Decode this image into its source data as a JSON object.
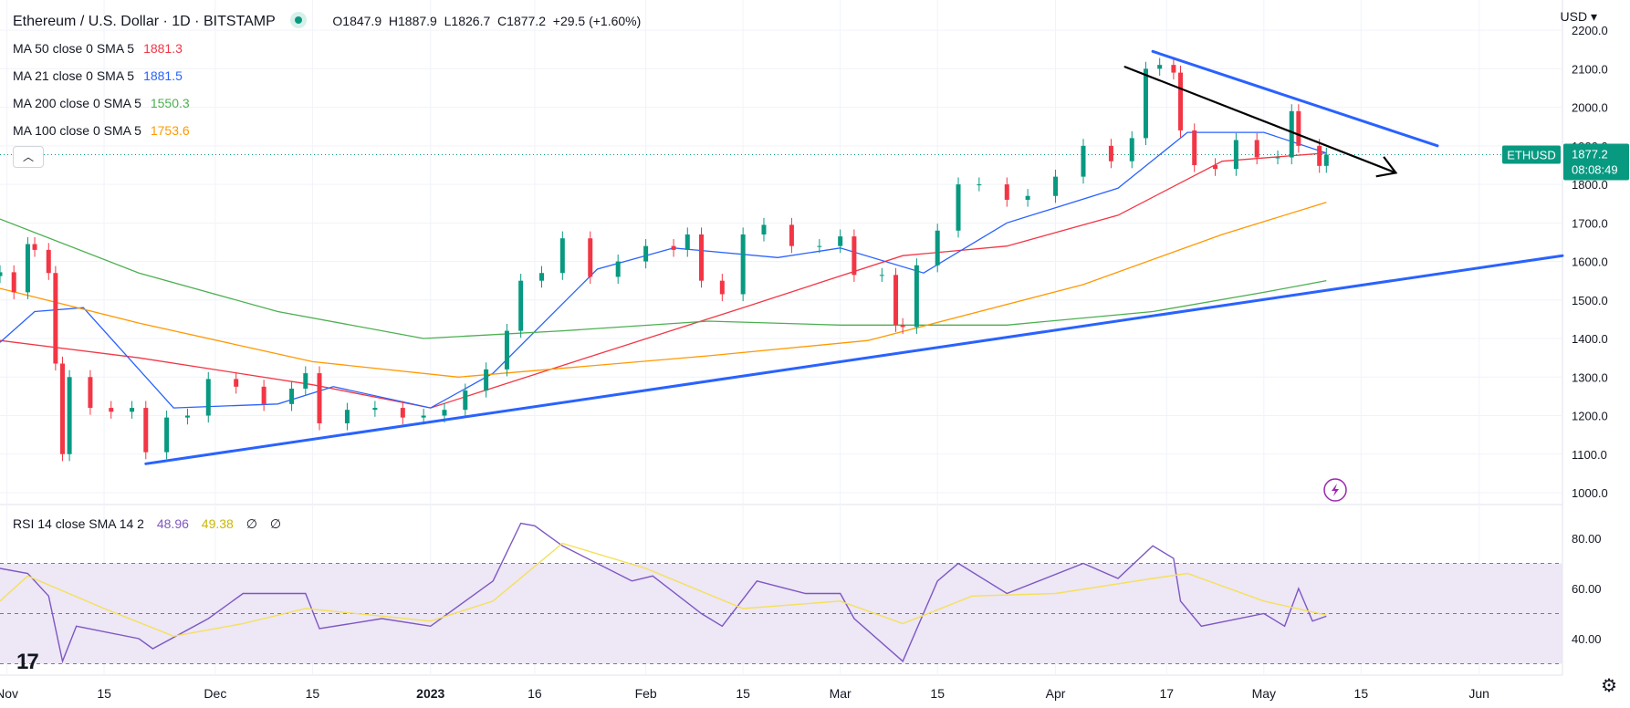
{
  "header": {
    "title": "Ethereum / U.S. Dollar · 1D · BITSTAMP",
    "ohlc": {
      "o_label": "O",
      "o": "1847.9",
      "h_label": "H",
      "h": "1887.9",
      "l_label": "L",
      "l": "1826.7",
      "c_label": "C",
      "c": "1877.2",
      "change": "+29.5 (+1.60%)"
    },
    "currency": "USD"
  },
  "indicators": [
    {
      "label": "MA 50 close 0 SMA 5",
      "value": "1881.3",
      "color": "#f23645"
    },
    {
      "label": "MA 21 close 0 SMA 5",
      "value": "1881.5",
      "color": "#2962ff"
    },
    {
      "label": "MA 200 close 0 SMA 5",
      "value": "1550.3",
      "color": "#4caf50"
    },
    {
      "label": "MA 100 close 0 SMA 5",
      "value": "1753.6",
      "color": "#ff9800"
    }
  ],
  "rsi_legend": {
    "label": "RSI 14 close SMA 14 2",
    "rsi": "48.96",
    "sma": "49.38",
    "extra1": "∅",
    "extra2": "∅"
  },
  "price_tag": {
    "symbol": "ETHUSD",
    "price": "1877.2",
    "countdown": "08:08:49"
  },
  "icons": [
    "chevron-up-icon",
    "flash-icon",
    "settings-gear-icon",
    "tradingview-logo-icon"
  ],
  "colors": {
    "up": "#089981",
    "down": "#f23645",
    "trendline": "#2962ff",
    "arrow": "#000000",
    "rsi": "#7e57c2",
    "rsi_sma": "#f5e05a",
    "rsi_band": "#ede7f6",
    "grid": "#f0f3fa"
  },
  "chart_data": [
    {
      "type": "candlestick",
      "title": "Ethereum / U.S. Dollar · 1D · BITSTAMP",
      "x_range": [
        "2022-10-31",
        "2023-06-13"
      ],
      "ylim": [
        950,
        2220
      ],
      "y_ticks": [
        1000,
        1100,
        1200,
        1300,
        1400,
        1500,
        1600,
        1700,
        1800,
        1900,
        2000,
        2100,
        2200
      ],
      "x_ticks": [
        "Nov",
        "15",
        "Dec",
        "15",
        "2023",
        "16",
        "Feb",
        "15",
        "Mar",
        "15",
        "Apr",
        "17",
        "May",
        "15",
        "Jun"
      ],
      "x_tick_dates": [
        "2022-11-01",
        "2022-11-15",
        "2022-12-01",
        "2022-12-15",
        "2023-01-01",
        "2023-01-16",
        "2023-02-01",
        "2023-02-15",
        "2023-03-01",
        "2023-03-15",
        "2023-04-01",
        "2023-04-17",
        "2023-05-01",
        "2023-05-15",
        "2023-06-01"
      ],
      "close_series": [
        [
          "2022-10-31",
          1572
        ],
        [
          "2022-11-02",
          1520
        ],
        [
          "2022-11-04",
          1645
        ],
        [
          "2022-11-05",
          1630
        ],
        [
          "2022-11-07",
          1570
        ],
        [
          "2022-11-08",
          1335
        ],
        [
          "2022-11-09",
          1100
        ],
        [
          "2022-11-10",
          1300
        ],
        [
          "2022-11-13",
          1220
        ],
        [
          "2022-11-16",
          1210
        ],
        [
          "2022-11-19",
          1220
        ],
        [
          "2022-11-21",
          1105
        ],
        [
          "2022-11-24",
          1195
        ],
        [
          "2022-11-27",
          1200
        ],
        [
          "2022-11-30",
          1295
        ],
        [
          "2022-12-04",
          1275
        ],
        [
          "2022-12-08",
          1230
        ],
        [
          "2022-12-12",
          1270
        ],
        [
          "2022-12-14",
          1310
        ],
        [
          "2022-12-16",
          1180
        ],
        [
          "2022-12-20",
          1215
        ],
        [
          "2022-12-24",
          1220
        ],
        [
          "2022-12-28",
          1195
        ],
        [
          "2022-12-31",
          1200
        ],
        [
          "2023-01-03",
          1215
        ],
        [
          "2023-01-06",
          1265
        ],
        [
          "2023-01-09",
          1320
        ],
        [
          "2023-01-12",
          1420
        ],
        [
          "2023-01-14",
          1550
        ],
        [
          "2023-01-17",
          1570
        ],
        [
          "2023-01-20",
          1660
        ],
        [
          "2023-01-24",
          1560
        ],
        [
          "2023-01-28",
          1600
        ],
        [
          "2023-02-01",
          1640
        ],
        [
          "2023-02-05",
          1630
        ],
        [
          "2023-02-07",
          1670
        ],
        [
          "2023-02-09",
          1550
        ],
        [
          "2023-02-12",
          1515
        ],
        [
          "2023-02-15",
          1670
        ],
        [
          "2023-02-18",
          1695
        ],
        [
          "2023-02-22",
          1640
        ],
        [
          "2023-02-26",
          1640
        ],
        [
          "2023-03-01",
          1665
        ],
        [
          "2023-03-03",
          1565
        ],
        [
          "2023-03-07",
          1565
        ],
        [
          "2023-03-09",
          1435
        ],
        [
          "2023-03-10",
          1430
        ],
        [
          "2023-03-12",
          1590
        ],
        [
          "2023-03-15",
          1680
        ],
        [
          "2023-03-18",
          1800
        ],
        [
          "2023-03-21",
          1800
        ],
        [
          "2023-03-25",
          1760
        ],
        [
          "2023-03-28",
          1770
        ],
        [
          "2023-04-01",
          1820
        ],
        [
          "2023-04-05",
          1900
        ],
        [
          "2023-04-09",
          1860
        ],
        [
          "2023-04-12",
          1920
        ],
        [
          "2023-04-14",
          2100
        ],
        [
          "2023-04-16",
          2110
        ],
        [
          "2023-04-18",
          2090
        ],
        [
          "2023-04-19",
          1940
        ],
        [
          "2023-04-21",
          1850
        ],
        [
          "2023-04-24",
          1840
        ],
        [
          "2023-04-27",
          1915
        ],
        [
          "2023-04-30",
          1870
        ],
        [
          "2023-05-03",
          1870
        ],
        [
          "2023-05-05",
          1990
        ],
        [
          "2023-05-06",
          1900
        ],
        [
          "2023-05-09",
          1848
        ],
        [
          "2023-05-10",
          1877.2
        ]
      ],
      "moving_averages": [
        {
          "name": "MA 50",
          "color": "#f23645",
          "points": [
            [
              "2022-10-31",
              1395
            ],
            [
              "2022-11-20",
              1350
            ],
            [
              "2022-12-15",
              1280
            ],
            [
              "2023-01-01",
              1220
            ],
            [
              "2023-01-20",
              1330
            ],
            [
              "2023-02-15",
              1480
            ],
            [
              "2023-03-10",
              1615
            ],
            [
              "2023-03-25",
              1640
            ],
            [
              "2023-04-10",
              1720
            ],
            [
              "2023-04-25",
              1860
            ],
            [
              "2023-05-10",
              1881.3
            ]
          ]
        },
        {
          "name": "MA 21",
          "color": "#2962ff",
          "points": [
            [
              "2022-10-31",
              1390
            ],
            [
              "2022-11-05",
              1470
            ],
            [
              "2022-11-12",
              1480
            ],
            [
              "2022-11-25",
              1220
            ],
            [
              "2022-12-10",
              1230
            ],
            [
              "2022-12-18",
              1275
            ],
            [
              "2023-01-01",
              1220
            ],
            [
              "2023-01-10",
              1310
            ],
            [
              "2023-01-25",
              1580
            ],
            [
              "2023-02-05",
              1635
            ],
            [
              "2023-02-20",
              1610
            ],
            [
              "2023-03-01",
              1635
            ],
            [
              "2023-03-13",
              1570
            ],
            [
              "2023-03-25",
              1700
            ],
            [
              "2023-04-10",
              1790
            ],
            [
              "2023-04-20",
              1935
            ],
            [
              "2023-05-01",
              1935
            ],
            [
              "2023-05-10",
              1881.5
            ]
          ]
        },
        {
          "name": "MA 200",
          "color": "#4caf50",
          "points": [
            [
              "2022-10-31",
              1710
            ],
            [
              "2022-11-20",
              1570
            ],
            [
              "2022-12-10",
              1470
            ],
            [
              "2022-12-31",
              1400
            ],
            [
              "2023-01-20",
              1420
            ],
            [
              "2023-02-10",
              1445
            ],
            [
              "2023-03-01",
              1435
            ],
            [
              "2023-03-25",
              1435
            ],
            [
              "2023-04-15",
              1470
            ],
            [
              "2023-05-01",
              1520
            ],
            [
              "2023-05-10",
              1550.3
            ]
          ]
        },
        {
          "name": "MA 100",
          "color": "#ff9800",
          "points": [
            [
              "2022-10-31",
              1530
            ],
            [
              "2022-11-20",
              1440
            ],
            [
              "2022-12-15",
              1340
            ],
            [
              "2023-01-05",
              1300
            ],
            [
              "2023-02-10",
              1355
            ],
            [
              "2023-03-05",
              1395
            ],
            [
              "2023-04-05",
              1540
            ],
            [
              "2023-04-25",
              1670
            ],
            [
              "2023-05-10",
              1753.6
            ]
          ]
        }
      ],
      "trendlines": [
        {
          "name": "support",
          "color": "#2962ff",
          "from": [
            "2022-11-21",
            1075
          ],
          "to": [
            "2023-06-13",
            1615
          ]
        },
        {
          "name": "resistance",
          "color": "#2962ff",
          "from": [
            "2023-04-15",
            2145
          ],
          "to": [
            "2023-05-26",
            1900
          ]
        },
        {
          "name": "projection-arrow",
          "color": "#000000",
          "from": [
            "2023-04-11",
            2105
          ],
          "to": [
            "2023-05-20",
            1830
          ]
        }
      ]
    },
    {
      "type": "line",
      "title": "RSI 14 close SMA 14 2",
      "ylim": [
        30,
        90
      ],
      "y_ticks": [
        40,
        60,
        80
      ],
      "bands": [
        30,
        50,
        70
      ],
      "series": [
        {
          "name": "RSI",
          "color": "#7e57c2",
          "points": [
            [
              "2022-10-31",
              68
            ],
            [
              "2022-11-04",
              66
            ],
            [
              "2022-11-07",
              57
            ],
            [
              "2022-11-09",
              31
            ],
            [
              "2022-11-11",
              45
            ],
            [
              "2022-11-20",
              40
            ],
            [
              "2022-11-22",
              36
            ],
            [
              "2022-11-30",
              48
            ],
            [
              "2022-12-05",
              58
            ],
            [
              "2022-12-14",
              58
            ],
            [
              "2022-12-16",
              44
            ],
            [
              "2022-12-25",
              48
            ],
            [
              "2023-01-01",
              45
            ],
            [
              "2023-01-06",
              55
            ],
            [
              "2023-01-10",
              63
            ],
            [
              "2023-01-14",
              86
            ],
            [
              "2023-01-16",
              85
            ],
            [
              "2023-01-20",
              77
            ],
            [
              "2023-01-30",
              63
            ],
            [
              "2023-02-02",
              65
            ],
            [
              "2023-02-09",
              50
            ],
            [
              "2023-02-12",
              45
            ],
            [
              "2023-02-17",
              63
            ],
            [
              "2023-02-24",
              58
            ],
            [
              "2023-03-01",
              58
            ],
            [
              "2023-03-03",
              48
            ],
            [
              "2023-03-10",
              31
            ],
            [
              "2023-03-15",
              63
            ],
            [
              "2023-03-18",
              70
            ],
            [
              "2023-03-25",
              58
            ],
            [
              "2023-04-05",
              70
            ],
            [
              "2023-04-10",
              64
            ],
            [
              "2023-04-15",
              77
            ],
            [
              "2023-04-18",
              72
            ],
            [
              "2023-04-19",
              55
            ],
            [
              "2023-04-22",
              45
            ],
            [
              "2023-05-01",
              50
            ],
            [
              "2023-05-04",
              45
            ],
            [
              "2023-05-06",
              60
            ],
            [
              "2023-05-08",
              47
            ],
            [
              "2023-05-10",
              48.96
            ]
          ]
        },
        {
          "name": "SMA",
          "color": "#f5e05a",
          "points": [
            [
              "2022-10-31",
              55
            ],
            [
              "2022-11-04",
              65
            ],
            [
              "2022-11-15",
              52
            ],
            [
              "2022-11-25",
              41
            ],
            [
              "2022-12-05",
              46
            ],
            [
              "2022-12-14",
              52
            ],
            [
              "2022-12-25",
              49
            ],
            [
              "2023-01-01",
              47
            ],
            [
              "2023-01-10",
              55
            ],
            [
              "2023-01-20",
              78
            ],
            [
              "2023-02-01",
              68
            ],
            [
              "2023-02-15",
              52
            ],
            [
              "2023-03-01",
              55
            ],
            [
              "2023-03-10",
              46
            ],
            [
              "2023-03-20",
              57
            ],
            [
              "2023-04-01",
              58
            ],
            [
              "2023-04-15",
              64
            ],
            [
              "2023-04-20",
              66
            ],
            [
              "2023-05-01",
              55
            ],
            [
              "2023-05-10",
              49.38
            ]
          ]
        }
      ]
    }
  ]
}
